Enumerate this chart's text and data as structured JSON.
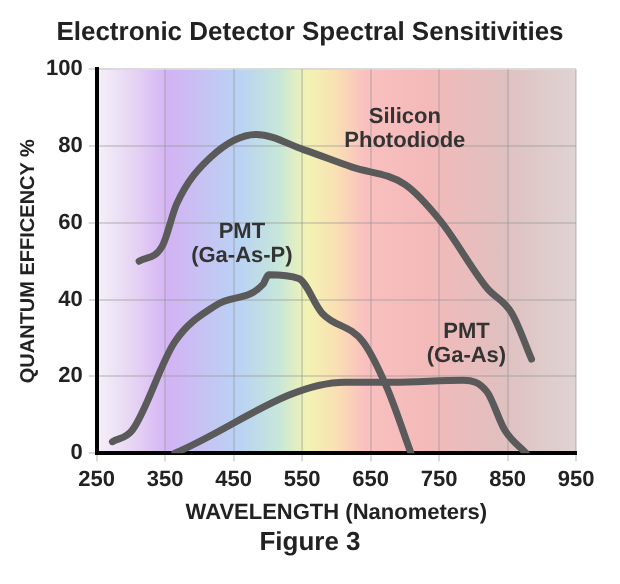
{
  "chart_data": {
    "type": "line",
    "title": "Electronic Detector Spectral Sensitivities",
    "xlabel": "WAVELENGTH (Nanometers)",
    "ylabel": "QUANTUM EFFICENCY %",
    "annotations": [
      "Figure 3"
    ],
    "xlim": [
      250,
      950
    ],
    "xticks": [
      250,
      350,
      450,
      550,
      650,
      750,
      850,
      950
    ],
    "ylim": [
      0,
      100
    ],
    "yticks": [
      0,
      20,
      40,
      60,
      80,
      100
    ],
    "grid": true,
    "legend": false,
    "marker": "none",
    "line_style": "solid",
    "series": [
      {
        "name": "Silicon Photodiode",
        "color": "#5a5a5a",
        "x": [
          312,
          346,
          367,
          416,
          483,
          553,
          623,
          700,
          752,
          820,
          856,
          885
        ],
        "values": [
          50,
          54,
          65,
          77,
          83,
          79,
          74.5,
          70,
          60.5,
          43,
          36.5,
          24.5
        ]
      },
      {
        "name": "PMT (Ga-As-P)",
        "color": "#5a5a5a",
        "x": [
          273,
          302,
          364,
          424,
          493,
          501,
          545,
          579,
          639,
          674,
          709
        ],
        "values": [
          3,
          6,
          29,
          38.5,
          44,
          46.5,
          45.5,
          36.5,
          29,
          17,
          0
        ]
      },
      {
        "name": "PMT (Ga-As)",
        "color": "#5a5a5a",
        "x": [
          364,
          613,
          683,
          786,
          820,
          846,
          877
        ],
        "values": [
          0,
          18.5,
          18.5,
          19,
          16,
          6,
          0
        ]
      }
    ]
  }
}
